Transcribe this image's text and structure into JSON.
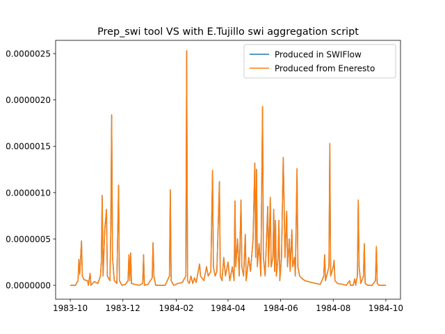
{
  "chart_data": {
    "type": "line",
    "title": "Prep_swi tool VS with E.Tujillo swi aggregation script",
    "x": [
      0,
      6,
      9,
      10,
      11,
      13,
      14,
      16,
      20,
      21,
      23,
      24,
      28,
      32,
      35,
      36,
      37,
      38,
      40,
      42,
      43,
      46,
      47,
      48,
      49,
      51,
      54,
      56,
      57,
      60,
      64,
      67,
      68,
      69,
      70,
      71,
      75,
      80,
      84,
      85,
      86,
      90,
      95,
      96,
      97,
      99,
      110,
      115,
      116,
      117,
      120,
      125,
      130,
      134,
      135,
      136,
      138,
      140,
      142,
      144,
      146,
      150,
      151,
      155,
      158,
      160,
      163,
      165,
      166,
      168,
      170,
      173,
      174,
      176,
      178,
      180,
      183,
      185,
      188,
      190,
      191,
      192,
      194,
      196,
      198,
      199,
      201,
      203,
      204,
      207,
      209,
      212,
      214,
      215,
      216,
      217,
      219,
      221,
      223,
      224,
      226,
      229,
      230,
      232,
      233,
      235,
      236,
      237,
      238,
      239,
      241,
      242,
      243,
      245,
      247,
      248,
      249,
      251,
      252,
      254,
      255,
      257,
      258,
      260,
      261,
      263,
      264,
      266,
      268,
      272,
      276,
      280,
      285,
      290,
      294,
      295,
      296,
      300,
      301,
      302,
      305,
      306,
      307,
      310,
      316,
      320,
      324,
      325,
      328,
      330,
      331,
      333,
      334,
      335,
      337,
      340,
      341,
      342,
      345,
      350,
      354,
      355,
      356,
      358,
      366
    ],
    "series": [
      {
        "name": "Produced in SWIFlow",
        "color": "#1f77b4",
        "values": [
          0,
          0,
          5e-08,
          2.8e-07,
          1.2e-07,
          4.8e-07,
          1e-07,
          6e-08,
          5e-08,
          0,
          1.3e-07,
          0,
          4e-08,
          2e-08,
          1e-07,
          2.5e-07,
          9.7e-07,
          1e-07,
          6e-07,
          8.2e-07,
          1e-07,
          5e-08,
          6e-07,
          1.84e-06,
          3e-07,
          5e-08,
          2e-08,
          1.08e-06,
          5e-08,
          0,
          1e-08,
          5e-08,
          3.3e-07,
          5e-08,
          3.5e-07,
          2e-08,
          1e-08,
          0,
          2e-08,
          3.3e-07,
          0,
          1e-08,
          8e-08,
          4.6e-07,
          1e-07,
          0,
          0,
          1e-07,
          1.03e-06,
          5e-08,
          0,
          2e-08,
          3e-08,
          1e-07,
          2.53e-06,
          5e-08,
          2e-08,
          1e-07,
          2e-08,
          8e-08,
          3e-08,
          2.3e-07,
          1e-07,
          5e-08,
          2e-07,
          1e-07,
          1.5e-07,
          1.24e-06,
          2e-07,
          1e-07,
          1.5e-07,
          1.12e-06,
          1e-07,
          5e-08,
          3e-07,
          1e-07,
          2.5e-07,
          5e-08,
          2e-07,
          5e-08,
          9.1e-07,
          2e-07,
          5e-07,
          1e-07,
          9.2e-07,
          2e-07,
          1e-07,
          5.5e-07,
          5e-08,
          3e-07,
          1.5e-07,
          5e-07,
          1.32e-06,
          3e-07,
          1.25e-06,
          2e-07,
          4.5e-07,
          1e-07,
          1.93e-06,
          3e-07,
          1e-07,
          8.5e-07,
          2e-07,
          9.5e-07,
          2e-07,
          3e-07,
          8.2e-07,
          1.5e-07,
          7e-07,
          1e-07,
          3e-07,
          7e-07,
          5e-08,
          3e-07,
          1.38e-06,
          9e-07,
          3e-07,
          8e-07,
          2e-07,
          5e-07,
          1.5e-07,
          6e-07,
          2e-07,
          3e-07,
          1e-07,
          1.26e-06,
          2e-07,
          1e-07,
          8e-08,
          5e-08,
          4e-08,
          3e-08,
          2e-08,
          1e-08,
          1e-07,
          3.3e-07,
          5e-08,
          2e-07,
          1.53e-06,
          1e-07,
          2e-07,
          2.7e-07,
          5e-08,
          2e-08,
          1e-08,
          0,
          5e-08,
          0,
          0,
          7e-08,
          0,
          1e-07,
          9.2e-07,
          2e-07,
          2e-08,
          1e-07,
          4.5e-07,
          2e-08,
          0,
          0,
          5e-08,
          4.2e-07,
          2e-08,
          0,
          0
        ]
      },
      {
        "name": "Produced from Eneresto",
        "color": "#ff7f0e",
        "values": [
          0,
          0,
          5e-08,
          2.8e-07,
          1.2e-07,
          4.8e-07,
          1e-07,
          6e-08,
          5e-08,
          0,
          1.3e-07,
          0,
          4e-08,
          2e-08,
          1e-07,
          2.5e-07,
          9.7e-07,
          1e-07,
          6e-07,
          8.2e-07,
          1e-07,
          5e-08,
          6e-07,
          1.84e-06,
          3e-07,
          5e-08,
          2e-08,
          1.08e-06,
          5e-08,
          0,
          1e-08,
          5e-08,
          3.3e-07,
          5e-08,
          3.5e-07,
          2e-08,
          1e-08,
          0,
          2e-08,
          3.3e-07,
          0,
          1e-08,
          8e-08,
          4.6e-07,
          1e-07,
          0,
          0,
          1e-07,
          1.03e-06,
          5e-08,
          0,
          2e-08,
          3e-08,
          1e-07,
          2.53e-06,
          5e-08,
          2e-08,
          1e-07,
          2e-08,
          8e-08,
          3e-08,
          2.3e-07,
          1e-07,
          5e-08,
          2e-07,
          1e-07,
          1.5e-07,
          1.24e-06,
          2e-07,
          1e-07,
          1.5e-07,
          1.12e-06,
          1e-07,
          5e-08,
          3e-07,
          1e-07,
          2.5e-07,
          5e-08,
          2e-07,
          5e-08,
          9.1e-07,
          2e-07,
          5e-07,
          1e-07,
          9.2e-07,
          2e-07,
          1e-07,
          5.5e-07,
          5e-08,
          3e-07,
          1.5e-07,
          5e-07,
          1.32e-06,
          3e-07,
          1.25e-06,
          2e-07,
          4.5e-07,
          1e-07,
          1.93e-06,
          3e-07,
          1e-07,
          8.5e-07,
          2e-07,
          9.5e-07,
          2e-07,
          3e-07,
          8.2e-07,
          1.5e-07,
          7e-07,
          1e-07,
          3e-07,
          7e-07,
          5e-08,
          3e-07,
          1.38e-06,
          9e-07,
          3e-07,
          8e-07,
          2e-07,
          5e-07,
          1.5e-07,
          6e-07,
          2e-07,
          3e-07,
          1e-07,
          1.26e-06,
          2e-07,
          1e-07,
          8e-08,
          5e-08,
          4e-08,
          3e-08,
          2e-08,
          1e-08,
          1e-07,
          3.3e-07,
          5e-08,
          2e-07,
          1.53e-06,
          1e-07,
          2e-07,
          2.7e-07,
          5e-08,
          2e-08,
          1e-08,
          0,
          5e-08,
          0,
          0,
          7e-08,
          0,
          1e-07,
          9.2e-07,
          2e-07,
          2e-08,
          1e-07,
          4.5e-07,
          2e-08,
          0,
          0,
          5e-08,
          4.2e-07,
          2e-08,
          0,
          0
        ]
      }
    ],
    "xlim": [
      -17,
      383
    ],
    "xticks": [
      {
        "value": 0,
        "label": "1983-10"
      },
      {
        "value": 61,
        "label": "1983-12"
      },
      {
        "value": 123,
        "label": "1984-02"
      },
      {
        "value": 183,
        "label": "1984-04"
      },
      {
        "value": 244,
        "label": "1984-06"
      },
      {
        "value": 305,
        "label": "1984-08"
      },
      {
        "value": 366,
        "label": "1984-10"
      }
    ],
    "ylim": [
      -1.5e-07,
      2.643e-06
    ],
    "yticks": [
      {
        "value": 0,
        "label": "0.0000000"
      },
      {
        "value": 5e-07,
        "label": "0.0000005"
      },
      {
        "value": 1e-06,
        "label": "0.0000010"
      },
      {
        "value": 1.5e-06,
        "label": "0.0000015"
      },
      {
        "value": 2e-06,
        "label": "0.0000020"
      },
      {
        "value": 2.5e-06,
        "label": "0.0000025"
      }
    ],
    "grid": false,
    "legend": "upper right"
  }
}
